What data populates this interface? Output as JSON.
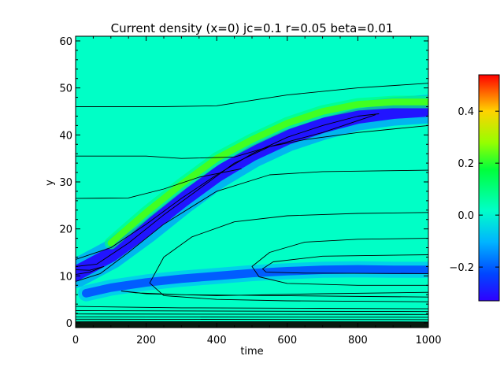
{
  "chart_data": {
    "type": "heatmap",
    "title": "Current density (x=0) jc=0.1 r=0.05 beta=0.01",
    "xlabel": "time",
    "ylabel": "y",
    "xlim": [
      0,
      1000
    ],
    "ylim": [
      -1,
      61
    ],
    "x_ticks": [
      0,
      200,
      400,
      600,
      800,
      1000
    ],
    "y_ticks": [
      0,
      10,
      20,
      30,
      40,
      50,
      60
    ],
    "colorbar": {
      "range": [
        -0.33,
        0.54
      ],
      "ticks": [
        -0.2,
        0.0,
        0.2,
        0.4
      ],
      "tick_labels": [
        "−0.2",
        "0.0",
        "0.2",
        "0.4"
      ],
      "colormap": "rainbow"
    },
    "background_value": 0.02,
    "features": [
      {
        "name": "rising-negative-band",
        "value": -0.3,
        "width": 3.2,
        "path": [
          [
            0,
            10.5
          ],
          [
            100,
            14.5
          ],
          [
            200,
            20
          ],
          [
            300,
            26
          ],
          [
            400,
            31.5
          ],
          [
            500,
            36
          ],
          [
            600,
            39.5
          ],
          [
            700,
            42
          ],
          [
            800,
            44
          ],
          [
            900,
            45
          ],
          [
            1000,
            45.5
          ]
        ]
      },
      {
        "name": "rising-positive-edge",
        "value": 0.22,
        "width": 1.4,
        "path": [
          [
            100,
            17
          ],
          [
            200,
            23.5
          ],
          [
            300,
            29.5
          ],
          [
            400,
            35
          ],
          [
            500,
            39
          ],
          [
            600,
            42.5
          ],
          [
            700,
            45
          ],
          [
            800,
            46.5
          ],
          [
            900,
            47
          ],
          [
            1000,
            47
          ]
        ]
      },
      {
        "name": "lower-negative-band",
        "value": -0.2,
        "width": 1.8,
        "path": [
          [
            30,
            6.3
          ],
          [
            100,
            7.5
          ],
          [
            200,
            8.6
          ],
          [
            300,
            9.4
          ],
          [
            400,
            10
          ],
          [
            500,
            10.6
          ],
          [
            600,
            11
          ],
          [
            700,
            11.3
          ],
          [
            800,
            11.4
          ],
          [
            900,
            11.3
          ],
          [
            1000,
            11.3
          ]
        ]
      }
    ],
    "contours": [
      [
        [
          0,
          46
        ],
        [
          250,
          46
        ],
        [
          400,
          46.2
        ],
        [
          600,
          48.5
        ],
        [
          800,
          50
        ],
        [
          1000,
          51
        ]
      ],
      [
        [
          0,
          35.5
        ],
        [
          200,
          35.5
        ],
        [
          300,
          35
        ],
        [
          450,
          35.3
        ],
        [
          550,
          37.5
        ],
        [
          700,
          40.5
        ],
        [
          850,
          44.3
        ]
      ],
      [
        [
          0,
          26.5
        ],
        [
          150,
          26.6
        ],
        [
          250,
          28.5
        ],
        [
          350,
          31
        ],
        [
          470,
          32.8
        ]
      ],
      [
        [
          0,
          13.5
        ],
        [
          100,
          16
        ],
        [
          200,
          21
        ],
        [
          300,
          26.5
        ],
        [
          400,
          31.5
        ],
        [
          500,
          36
        ],
        [
          600,
          39.5
        ],
        [
          700,
          42
        ],
        [
          800,
          44
        ],
        [
          860,
          44.5
        ]
      ],
      [
        [
          0,
          12
        ],
        [
          60,
          12.5
        ],
        [
          150,
          17
        ],
        [
          250,
          23
        ],
        [
          350,
          28.5
        ],
        [
          450,
          34
        ],
        [
          550,
          37.5
        ],
        [
          650,
          39
        ],
        [
          800,
          40.5
        ],
        [
          1000,
          42
        ]
      ],
      [
        [
          0,
          8.8
        ],
        [
          70,
          10.5
        ],
        [
          150,
          15
        ],
        [
          250,
          21
        ],
        [
          400,
          28
        ],
        [
          550,
          31.5
        ],
        [
          700,
          32.2
        ],
        [
          1000,
          32.5
        ]
      ],
      [
        [
          1000,
          23.5
        ],
        [
          800,
          23.3
        ],
        [
          600,
          22.8
        ],
        [
          450,
          21.5
        ],
        [
          330,
          18.3
        ],
        [
          250,
          14
        ],
        [
          210,
          8.5
        ],
        [
          250,
          5.8
        ],
        [
          400,
          5
        ],
        [
          600,
          4.7
        ],
        [
          800,
          4.6
        ],
        [
          1000,
          4.5
        ]
      ],
      [
        [
          1000,
          18
        ],
        [
          800,
          17.8
        ],
        [
          650,
          17.2
        ],
        [
          550,
          15
        ],
        [
          500,
          12
        ],
        [
          520,
          9.8
        ],
        [
          600,
          8.4
        ],
        [
          800,
          8
        ],
        [
          1000,
          8
        ]
      ],
      [
        [
          1000,
          14.5
        ],
        [
          700,
          14.2
        ],
        [
          560,
          13
        ],
        [
          530,
          11.5
        ],
        [
          540,
          10.8
        ],
        [
          650,
          10.6
        ],
        [
          1000,
          10.5
        ]
      ],
      [
        [
          1000,
          6.5
        ],
        [
          700,
          6.2
        ],
        [
          400,
          5.8
        ],
        [
          200,
          6.2
        ],
        [
          130,
          6.8
        ],
        [
          170,
          6.4
        ],
        [
          300,
          6
        ],
        [
          1000,
          5.5
        ]
      ],
      [
        [
          0,
          10.3
        ],
        [
          40,
          10.8
        ],
        [
          80,
          12
        ],
        [
          40,
          11.2
        ],
        [
          0,
          11.3
        ]
      ],
      [
        [
          0,
          3.5
        ],
        [
          300,
          3.2
        ],
        [
          700,
          3.1
        ],
        [
          1000,
          3
        ]
      ],
      [
        [
          0,
          2.6
        ],
        [
          1000,
          2.4
        ]
      ],
      [
        [
          0,
          1.9
        ],
        [
          1000,
          1.8
        ]
      ],
      [
        [
          0,
          1.3
        ],
        [
          1000,
          1.2
        ]
      ],
      [
        [
          0,
          0.8
        ],
        [
          1000,
          0.7
        ]
      ],
      [
        [
          0,
          0.3
        ],
        [
          1000,
          0.2
        ]
      ]
    ]
  }
}
